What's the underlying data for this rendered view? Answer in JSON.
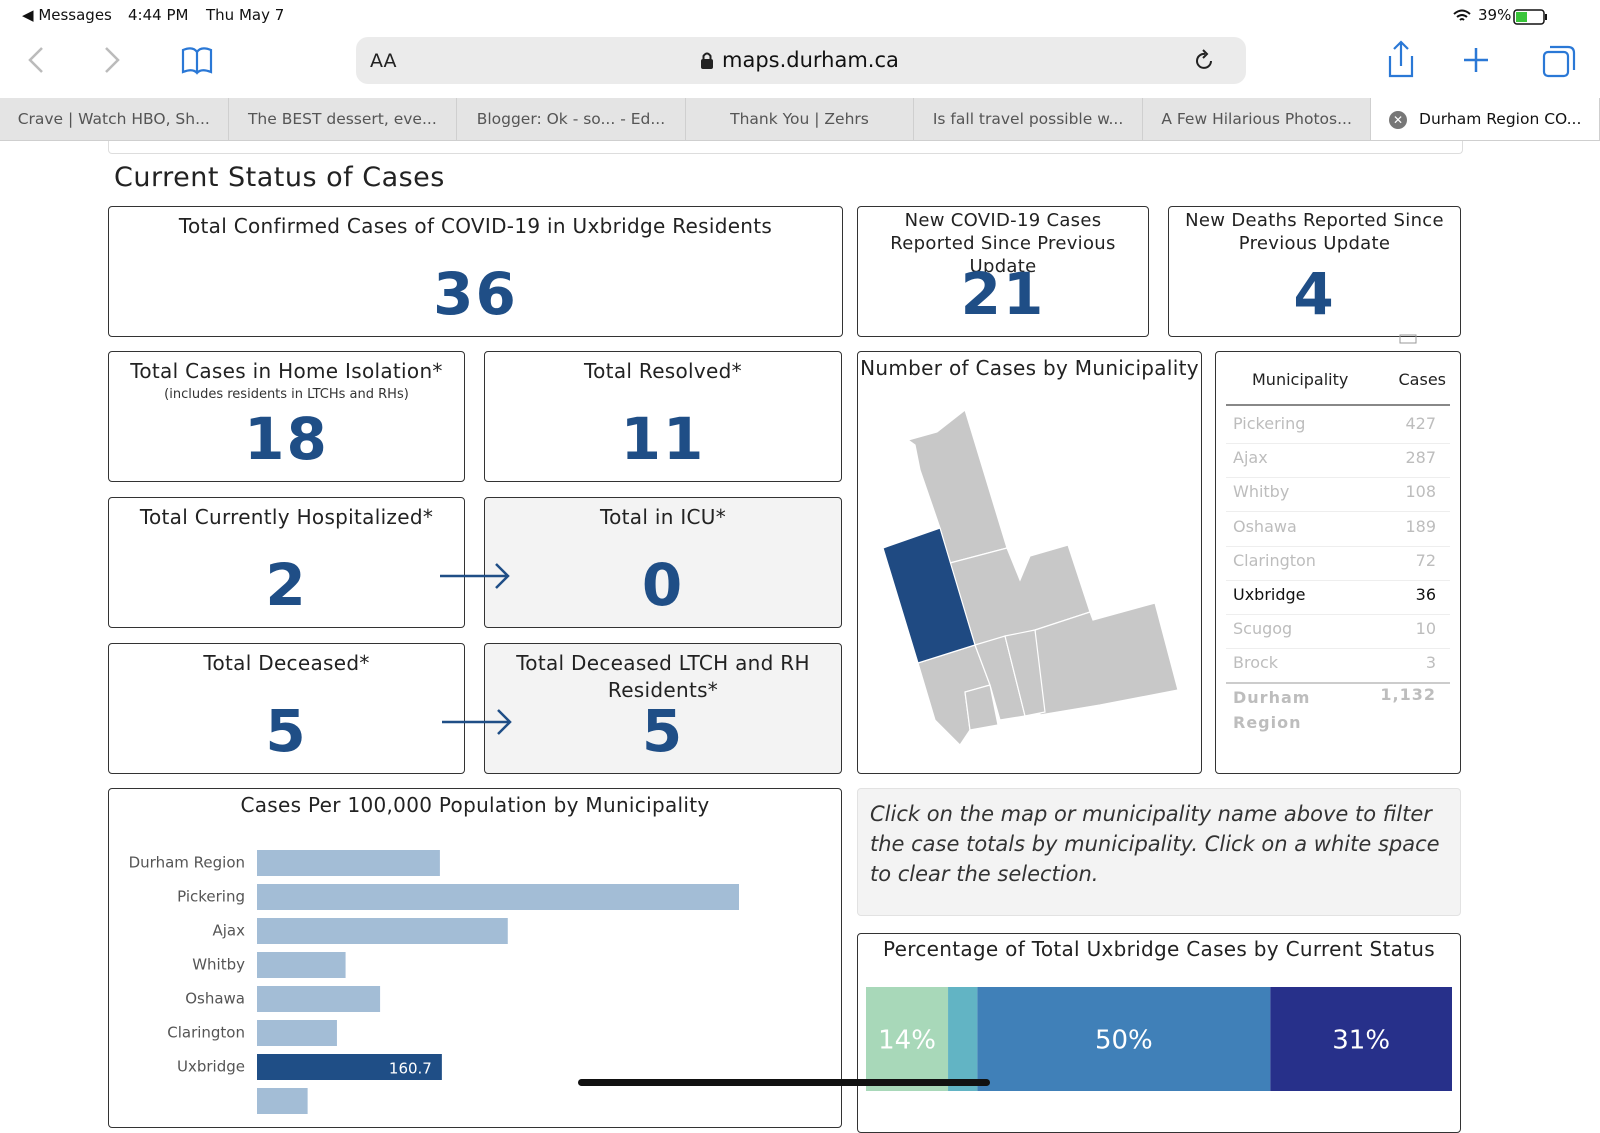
{
  "status_bar": {
    "back_app": "Messages",
    "time": "4:44 PM",
    "date": "Thu May 7",
    "battery": "39%"
  },
  "address_bar": {
    "text_size": "AA",
    "url": "maps.durham.ca"
  },
  "tabs": [
    "Crave | Watch HBO, Sh...",
    "The BEST dessert, eve...",
    "Blogger: Ok - so... - Ed...",
    "Thank You | Zehrs",
    "Is fall travel possible w...",
    "A Few Hilarious Photos...",
    "Durham Region CO..."
  ],
  "dashboard": {
    "section_title": "Current Status of Cases",
    "cards": [
      {
        "title": "Total Confirmed Cases of COVID-19 in Uxbridge Residents",
        "value": "36"
      },
      {
        "title": "New COVID-19 Cases Reported Since Previous Update",
        "value": "21"
      },
      {
        "title": "New Deaths Reported Since Previous Update",
        "value": "4"
      },
      {
        "title": "Total Cases in Home Isolation*",
        "subtitle": "(includes residents in LTCHs and RHs)",
        "value": "18"
      },
      {
        "title": "Total Resolved*",
        "value": "11"
      },
      {
        "title": "Total Currently Hospitalized*",
        "value": "2"
      },
      {
        "title": "Total in ICU*",
        "value": "0",
        "shaded": true
      },
      {
        "title": "Total Deceased*",
        "value": "5"
      },
      {
        "title": "Total Deceased LTCH and RH Residents*",
        "value": "5",
        "shaded": true
      }
    ],
    "map_title": "Number of Cases by Municipality",
    "table": {
      "headers": [
        "Municipality",
        "Cases"
      ],
      "rows": [
        [
          "Pickering",
          "427"
        ],
        [
          "Ajax",
          "287"
        ],
        [
          "Whitby",
          "108"
        ],
        [
          "Oshawa",
          "189"
        ],
        [
          "Clarington",
          "72"
        ],
        [
          "Uxbridge",
          "36"
        ],
        [
          "Scugog",
          "10"
        ],
        [
          "Brock",
          "3"
        ]
      ],
      "total": [
        "Durham Region",
        "1,132"
      ]
    },
    "note": "Click on the map or municipality name above to filter the case totals by municipality. Click on a white space to clear the selection."
  },
  "chart_data": [
    {
      "type": "bar",
      "orientation": "horizontal",
      "title": "Cases Per 100,000 Population by Municipality",
      "categories": [
        "Durham Region",
        "Pickering",
        "Ajax",
        "Whitby",
        "Oshawa",
        "Clarington",
        "Uxbridge",
        null
      ],
      "values": [
        159,
        419,
        218,
        77,
        107,
        69.5,
        160.7,
        44
      ],
      "color": "#a3bdd6",
      "highlight": "Uxbridge",
      "highlight_color": "#1f4e86"
    },
    {
      "type": "stacked-bar",
      "title": "Percentage of Total Uxbridge Cases by Current Status",
      "values": [
        14,
        5,
        50,
        31
      ],
      "value_labels": [
        "14%",
        null,
        "50%",
        "31%"
      ],
      "colors": [
        "#a8d8b9",
        "#62b4c4",
        "#4080b8",
        "#27308a"
      ]
    }
  ]
}
